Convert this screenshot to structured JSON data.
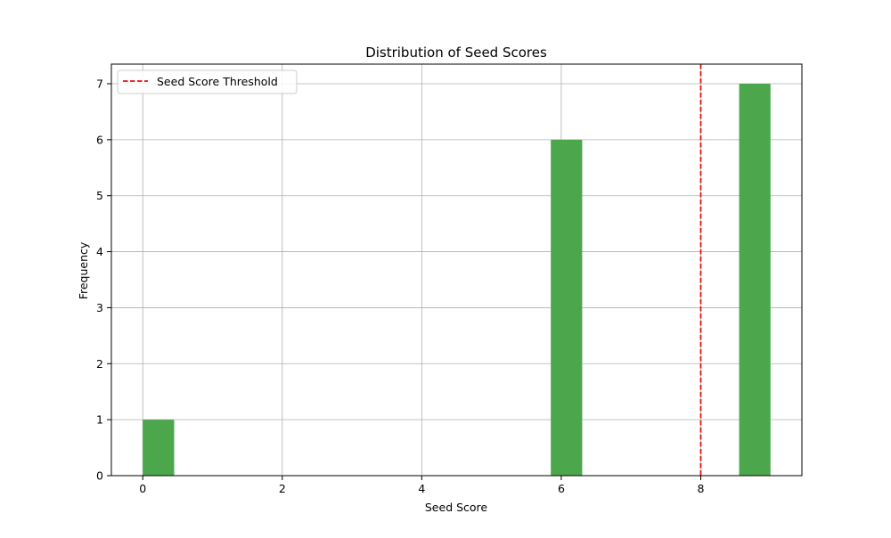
{
  "chart_data": {
    "type": "bar",
    "title": "Distribution of Seed Scores",
    "xlabel": "Seed Score",
    "ylabel": "Frequency",
    "xlim": [
      -0.45,
      9.45
    ],
    "ylim": [
      0,
      7.35
    ],
    "xticks": [
      0,
      2,
      4,
      6,
      8
    ],
    "yticks": [
      0,
      1,
      2,
      3,
      4,
      5,
      6,
      7
    ],
    "grid": true,
    "bins": [
      {
        "x0": 0.0,
        "x1": 0.45,
        "count": 1
      },
      {
        "x0": 5.85,
        "x1": 6.3,
        "count": 6
      },
      {
        "x0": 8.55,
        "x1": 9.0,
        "count": 7
      }
    ],
    "bar_color": "#4ca64c",
    "threshold": {
      "x": 8,
      "label": "Seed Score Threshold",
      "color": "#e8120c",
      "style": "dashed"
    },
    "legend": {
      "placement": "top-left",
      "entries": [
        "Seed Score Threshold"
      ]
    }
  }
}
